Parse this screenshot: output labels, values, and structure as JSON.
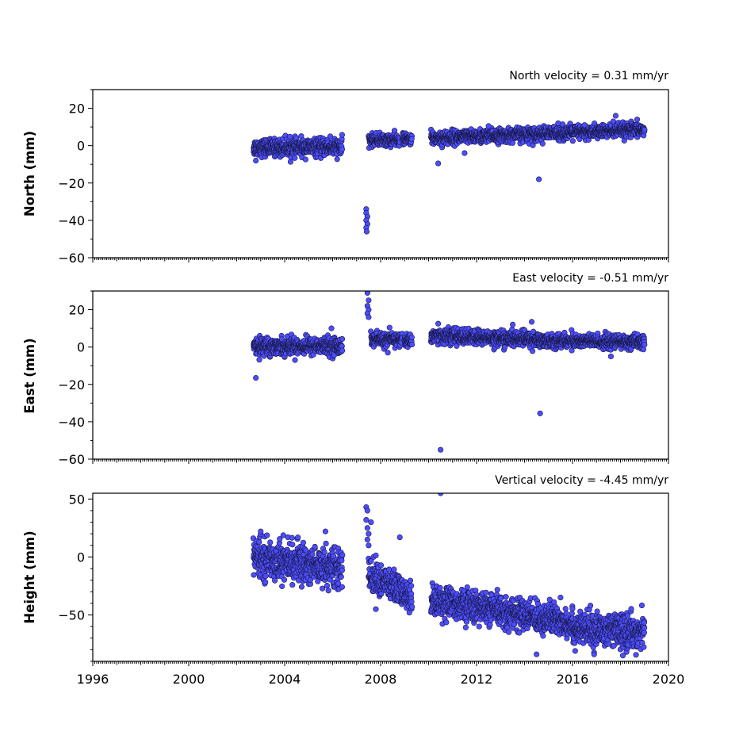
{
  "chart_data": [
    {
      "type": "scatter",
      "title": "North velocity = 0.31 mm/yr",
      "ylabel": "North (mm)",
      "xlim": [
        1996,
        2020
      ],
      "ylim": [
        -60,
        30
      ],
      "yticks": [
        20,
        0,
        -20,
        -40,
        -60
      ],
      "ytick_labels": [
        "20",
        "0",
        "−20",
        "−40",
        "−60"
      ],
      "xtick_labels_shown": false,
      "series": [
        {
          "marker_color": "#4d4dff",
          "segments": [
            {
              "x_start": 2002.7,
              "x_end": 2006.4,
              "mean": -1.0,
              "spread": 2.2
            },
            {
              "x_start": 2007.5,
              "x_end": 2008.8,
              "mean": 3.0,
              "spread": 1.6
            },
            {
              "x_start": 2008.9,
              "x_end": 2009.3,
              "mean": 3.5,
              "spread": 1.4
            },
            {
              "x_start": 2010.1,
              "x_end": 2019.0,
              "mean_start": 4.0,
              "mean_end": 8.5,
              "spread": 1.8
            }
          ],
          "outliers": [
            {
              "x": 2007.4,
              "y": -34
            },
            {
              "x": 2007.4,
              "y": -36
            },
            {
              "x": 2007.45,
              "y": -38
            },
            {
              "x": 2007.4,
              "y": -40
            },
            {
              "x": 2007.45,
              "y": -42
            },
            {
              "x": 2007.4,
              "y": -44
            },
            {
              "x": 2007.42,
              "y": -46
            },
            {
              "x": 2002.8,
              "y": -8
            },
            {
              "x": 2005.9,
              "y": 5
            },
            {
              "x": 2010.4,
              "y": -9.5
            },
            {
              "x": 2011.5,
              "y": -4
            },
            {
              "x": 2012.5,
              "y": 10.5
            },
            {
              "x": 2015.4,
              "y": 12
            },
            {
              "x": 2014.6,
              "y": -18
            },
            {
              "x": 2017.8,
              "y": 16
            },
            {
              "x": 2017.7,
              "y": 13
            },
            {
              "x": 2016.5,
              "y": 11
            }
          ]
        }
      ]
    },
    {
      "type": "scatter",
      "title": "East velocity = -0.51 mm/yr",
      "ylabel": "East (mm)",
      "xlim": [
        1996,
        2020
      ],
      "ylim": [
        -60,
        30
      ],
      "yticks": [
        20,
        0,
        -20,
        -40,
        -60
      ],
      "ytick_labels": [
        "20",
        "0",
        "−20",
        "−40",
        "−60"
      ],
      "xtick_labels_shown": false,
      "series": [
        {
          "marker_color": "#4d4dff",
          "segments": [
            {
              "x_start": 2002.7,
              "x_end": 2006.4,
              "mean": 0.5,
              "spread": 2.2
            },
            {
              "x_start": 2007.6,
              "x_end": 2008.9,
              "mean": 4.0,
              "spread": 1.8
            },
            {
              "x_start": 2009.0,
              "x_end": 2009.3,
              "mean": 3.5,
              "spread": 1.6
            },
            {
              "x_start": 2010.1,
              "x_end": 2014.5,
              "mean_start": 6.0,
              "mean_end": 4.0,
              "spread": 2.0
            },
            {
              "x_start": 2014.5,
              "x_end": 2019.0,
              "mean_start": 3.5,
              "mean_end": 2.5,
              "spread": 1.8
            }
          ],
          "outliers": [
            {
              "x": 2007.45,
              "y": 29
            },
            {
              "x": 2007.5,
              "y": 25
            },
            {
              "x": 2007.45,
              "y": 22
            },
            {
              "x": 2007.5,
              "y": 20
            },
            {
              "x": 2007.45,
              "y": 18
            },
            {
              "x": 2007.5,
              "y": 16
            },
            {
              "x": 2002.8,
              "y": -16.5
            },
            {
              "x": 2005.95,
              "y": 10
            },
            {
              "x": 2010.5,
              "y": -55
            },
            {
              "x": 2014.65,
              "y": -35.5
            },
            {
              "x": 2014.3,
              "y": 13.5
            },
            {
              "x": 2010.4,
              "y": 12.5
            },
            {
              "x": 2017.6,
              "y": -5
            },
            {
              "x": 2008.3,
              "y": -3
            }
          ]
        }
      ]
    },
    {
      "type": "scatter",
      "title": "Vertical velocity = -4.45 mm/yr",
      "ylabel": "Height (mm)",
      "xlim": [
        1996,
        2020
      ],
      "ylim": [
        -90,
        55
      ],
      "yticks": [
        50,
        0,
        -50
      ],
      "ytick_labels": [
        "50",
        "0",
        "−50"
      ],
      "xticks": [
        1996,
        2000,
        2004,
        2008,
        2012,
        2016,
        2020
      ],
      "xtick_labels": [
        "1996",
        "2000",
        "2004",
        "2008",
        "2012",
        "2016",
        "2020"
      ],
      "xtick_labels_shown": true,
      "series": [
        {
          "marker_color": "#4d4dff",
          "segments": [
            {
              "x_start": 2002.7,
              "x_end": 2006.4,
              "mean_start": 0,
              "mean_end": -10,
              "spread": 8
            },
            {
              "x_start": 2007.5,
              "x_end": 2008.9,
              "mean_start": -15,
              "mean_end": -30,
              "spread": 7
            },
            {
              "x_start": 2008.9,
              "x_end": 2009.3,
              "mean": -33,
              "spread": 6
            },
            {
              "x_start": 2010.1,
              "x_end": 2016.0,
              "mean_start": -37,
              "mean_end": -57,
              "spread": 6.5
            },
            {
              "x_start": 2016.0,
              "x_end": 2019.0,
              "mean_start": -62,
              "mean_end": -65,
              "spread": 7
            }
          ],
          "outliers": [
            {
              "x": 2007.4,
              "y": 43
            },
            {
              "x": 2007.45,
              "y": 40
            },
            {
              "x": 2007.4,
              "y": 32
            },
            {
              "x": 2007.6,
              "y": 30
            },
            {
              "x": 2007.45,
              "y": 25
            },
            {
              "x": 2007.5,
              "y": 20
            },
            {
              "x": 2007.45,
              "y": 15
            },
            {
              "x": 2007.5,
              "y": 10
            },
            {
              "x": 2008.8,
              "y": 17
            },
            {
              "x": 2010.5,
              "y": 55
            },
            {
              "x": 2005.7,
              "y": 22
            },
            {
              "x": 2003.0,
              "y": 22
            },
            {
              "x": 2007.8,
              "y": -45
            },
            {
              "x": 2009.2,
              "y": -48
            },
            {
              "x": 2014.5,
              "y": -84
            },
            {
              "x": 2015.5,
              "y": -35
            },
            {
              "x": 2018.1,
              "y": -85
            },
            {
              "x": 2016.9,
              "y": -84
            }
          ]
        }
      ]
    }
  ]
}
